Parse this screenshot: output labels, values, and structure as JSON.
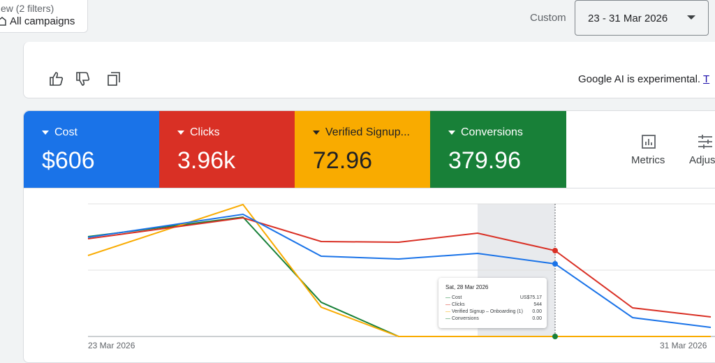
{
  "filters": {
    "subtitle": "ew (2 filters)",
    "title": "All campaigns"
  },
  "date_range": {
    "label": "Custom",
    "value": "23 - 31 Mar 2026"
  },
  "ai_bar": {
    "note": "Google AI is experimental.",
    "link": "T"
  },
  "metrics": [
    {
      "label": "Cost",
      "value": "$606"
    },
    {
      "label": "Clicks",
      "value": "3.96k"
    },
    {
      "label": "Verified Signup...",
      "value": "72.96"
    },
    {
      "label": "Conversions",
      "value": "379.96"
    }
  ],
  "actions": [
    "Metrics",
    "Adjus"
  ],
  "chart": {
    "x_start": "23 Mar 2026",
    "x_end": "31 Mar 2026",
    "tooltip": {
      "title": "Sat, 28 Mar 2026",
      "rows": [
        [
          "Cost",
          "US$75.17"
        ],
        [
          "Clicks",
          "544"
        ],
        [
          "Verified Signup – Onboarding (1)",
          "0.00"
        ],
        [
          "Conversions",
          "0.00"
        ]
      ]
    }
  }
}
